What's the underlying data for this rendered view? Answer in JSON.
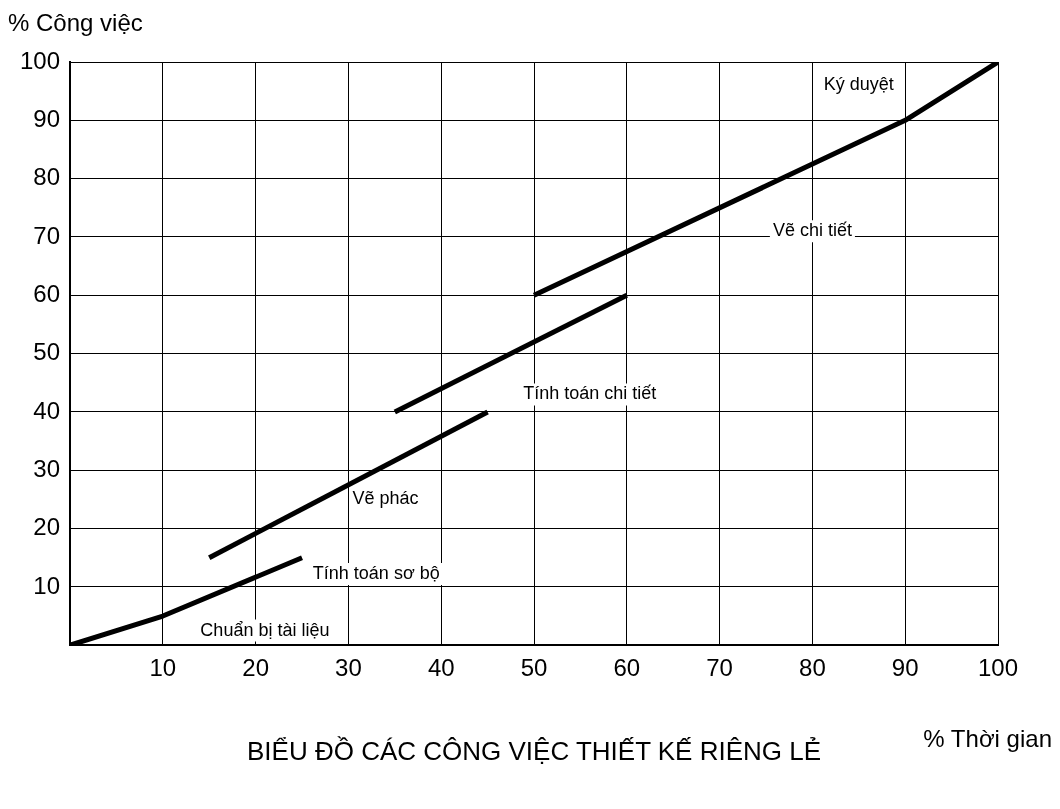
{
  "chart_data": {
    "type": "line",
    "title": "BIỂU ĐỒ CÁC CÔNG VIỆC THIẾT KẾ RIÊNG LẺ",
    "xlabel": "% Thời gian",
    "ylabel": "% Công việc",
    "series": [
      {
        "color": "#000000",
        "x": [
          0,
          10,
          25
        ],
        "values": [
          0,
          5,
          15
        ]
      },
      {
        "color": "#000000",
        "x": [
          15,
          45
        ],
        "values": [
          15,
          40
        ]
      },
      {
        "color": "#000000",
        "x": [
          35,
          60
        ],
        "values": [
          40,
          60
        ]
      },
      {
        "color": "#000000",
        "x": [
          50,
          90,
          100
        ],
        "values": [
          60,
          90,
          100
        ]
      }
    ],
    "annotations": [
      "Chuẩn bị tài liệu",
      "Tính toán sơ bộ",
      "Vẽ phác",
      "Tính toán chi tiết",
      "Vẽ chi tiết",
      "Ký duyệt"
    ],
    "xlim": [
      0,
      100
    ],
    "ylim": [
      0,
      100
    ],
    "xticks": [
      10,
      20,
      30,
      40,
      50,
      60,
      70,
      80,
      90,
      100
    ],
    "yticks": [
      10,
      20,
      30,
      40,
      50,
      60,
      70,
      80,
      90,
      100
    ],
    "grid": true,
    "legend": false,
    "marker": "none",
    "line_style": "solid"
  }
}
